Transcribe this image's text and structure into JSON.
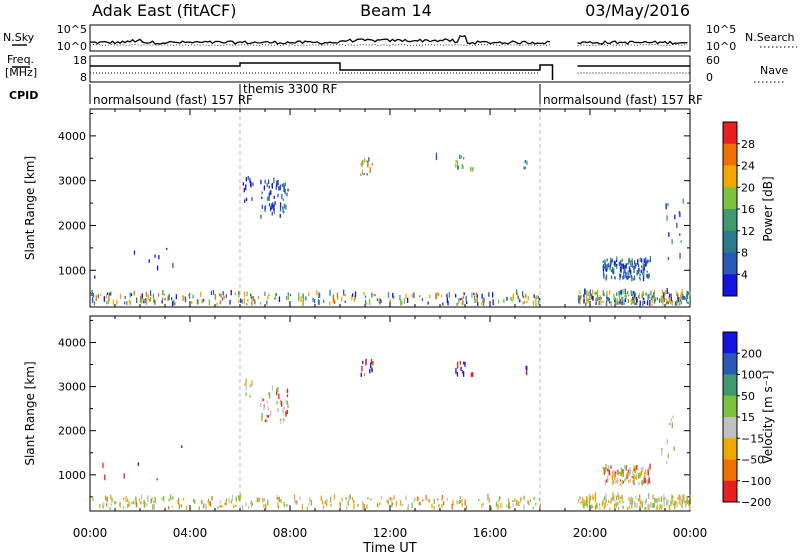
{
  "header": {
    "station": "Adak East (fitACF)",
    "beam": "Beam 14",
    "date": "03/May/2016"
  },
  "strip_labels": {
    "nsky": "N.Sky",
    "nsearch": "N.Search",
    "freq_line1": "Freq.",
    "freq_line2": "[MHz]",
    "nave": "Nave",
    "cpid": "CPID",
    "nsky_ticks": [
      "10^5",
      "10^0"
    ],
    "nsearch_ticks": [
      "10^5",
      "10^0"
    ],
    "freq_ticks": [
      "18",
      "8"
    ],
    "nave_ticks": [
      "60",
      "0"
    ]
  },
  "cpid_segments": [
    {
      "label": "normalsound (fast) 157 RF",
      "start_h": 0.0,
      "end_h": 6.0
    },
    {
      "label": "themis 3300 RF",
      "start_h": 6.0,
      "end_h": 18.0
    },
    {
      "label": "normalsound (fast) 157 RF",
      "start_h": 18.0,
      "end_h": 24.0
    }
  ],
  "chart_data": {
    "type": "scatter",
    "xlabel": "Time UT",
    "x_ticks": [
      "00:00",
      "04:00",
      "08:00",
      "12:00",
      "16:00",
      "20:00",
      "00:00"
    ],
    "xlim_hours": [
      0,
      24
    ],
    "gap_hours": [
      18.5,
      19.5
    ],
    "panels": [
      {
        "name": "power",
        "ylabel": "Slant Range [km]",
        "ylim": [
          180,
          4600
        ],
        "yticks": [
          1000,
          2000,
          3000,
          4000
        ],
        "colorbar": {
          "label": "Power [dB]",
          "ticks": [
            "4",
            "8",
            "12",
            "16",
            "20",
            "24",
            "28"
          ],
          "colors": [
            "#1515e0",
            "#2a5ab8",
            "#2d7a8a",
            "#3f9a70",
            "#7cc23f",
            "#f0a800",
            "#f07000",
            "#e82020"
          ]
        },
        "echo_groups": [
          {
            "t0": 6.1,
            "t1": 6.5,
            "r0": 2500,
            "r1": 3150,
            "n": 12,
            "c": [
              0,
              1
            ]
          },
          {
            "t0": 6.8,
            "t1": 7.9,
            "r0": 2150,
            "r1": 2950,
            "n": 55,
            "c": [
              0,
              1,
              2
            ]
          },
          {
            "t0": 10.8,
            "t1": 11.3,
            "r0": 3100,
            "r1": 3550,
            "n": 16,
            "c": [
              4,
              5,
              6,
              1
            ]
          },
          {
            "t0": 14.6,
            "t1": 15.0,
            "r0": 3200,
            "r1": 3500,
            "n": 10,
            "c": [
              3,
              4
            ]
          },
          {
            "t0": 13.8,
            "t1": 13.9,
            "r0": 3450,
            "r1": 3500,
            "n": 2,
            "c": [
              1
            ]
          },
          {
            "t0": 15.2,
            "t1": 15.3,
            "r0": 3150,
            "r1": 3250,
            "n": 3,
            "c": [
              4
            ]
          },
          {
            "t0": 17.3,
            "t1": 17.5,
            "r0": 3250,
            "r1": 3400,
            "n": 4,
            "c": [
              1,
              3
            ]
          },
          {
            "t0": 20.5,
            "t1": 22.4,
            "r0": 750,
            "r1": 1200,
            "n": 130,
            "c": [
              0,
              1,
              2,
              3
            ]
          },
          {
            "t0": 22.8,
            "t1": 23.8,
            "r0": 1100,
            "r1": 2500,
            "n": 14,
            "c": [
              0,
              1,
              3
            ]
          },
          {
            "t0": 0.1,
            "t1": 3.8,
            "r0": 600,
            "r1": 1800,
            "n": 8,
            "c": [
              0,
              1
            ]
          },
          {
            "t0": 0.0,
            "t1": 18.0,
            "r0": 200,
            "r1": 450,
            "n": 260,
            "c": [
              0,
              1,
              2,
              3,
              4,
              5,
              6
            ]
          },
          {
            "t0": 19.5,
            "t1": 24.0,
            "r0": 200,
            "r1": 480,
            "n": 200,
            "c": [
              0,
              1,
              2,
              3,
              4,
              5
            ]
          }
        ]
      },
      {
        "name": "velocity",
        "ylabel": "Slant Range [km]",
        "ylim": [
          180,
          4600
        ],
        "yticks": [
          1000,
          2000,
          3000,
          4000
        ],
        "colorbar": {
          "label": "Velocity [m s⁻¹]",
          "ticks": [
            "200",
            "100",
            "50",
            "15",
            "−15",
            "−50",
            "−100",
            "−200"
          ],
          "colors": [
            "#1515e0",
            "#2a5ab8",
            "#3f9a70",
            "#7cc23f",
            "#c0c0c0",
            "#f0a800",
            "#f07000",
            "#e82020"
          ]
        },
        "echo_groups": [
          {
            "t0": 6.1,
            "t1": 6.5,
            "r0": 2600,
            "r1": 3150,
            "n": 8,
            "c": [
              4,
              5,
              3
            ]
          },
          {
            "t0": 6.8,
            "t1": 7.9,
            "r0": 2150,
            "r1": 2900,
            "n": 40,
            "c": [
              4,
              3,
              7
            ]
          },
          {
            "t0": 10.8,
            "t1": 11.3,
            "r0": 3200,
            "r1": 3550,
            "n": 14,
            "c": [
              0,
              7,
              6
            ]
          },
          {
            "t0": 14.6,
            "t1": 15.0,
            "r0": 3200,
            "r1": 3500,
            "n": 10,
            "c": [
              0,
              7
            ]
          },
          {
            "t0": 15.2,
            "t1": 15.3,
            "r0": 3150,
            "r1": 3250,
            "n": 3,
            "c": [
              7
            ]
          },
          {
            "t0": 17.3,
            "t1": 17.5,
            "r0": 3250,
            "r1": 3400,
            "n": 4,
            "c": [
              7,
              0
            ]
          },
          {
            "t0": 20.5,
            "t1": 22.4,
            "r0": 750,
            "r1": 1150,
            "n": 110,
            "c": [
              4,
              3,
              5,
              7
            ]
          },
          {
            "t0": 22.8,
            "t1": 23.8,
            "r0": 1100,
            "r1": 2500,
            "n": 10,
            "c": [
              4,
              3
            ]
          },
          {
            "t0": 0.1,
            "t1": 3.8,
            "r0": 600,
            "r1": 1800,
            "n": 6,
            "c": [
              7,
              0
            ]
          },
          {
            "t0": 0.0,
            "t1": 18.0,
            "r0": 200,
            "r1": 450,
            "n": 240,
            "c": [
              5,
              4,
              3,
              6
            ]
          },
          {
            "t0": 19.5,
            "t1": 24.0,
            "r0": 200,
            "r1": 480,
            "n": 180,
            "c": [
              5,
              4,
              3
            ]
          }
        ]
      }
    ]
  }
}
